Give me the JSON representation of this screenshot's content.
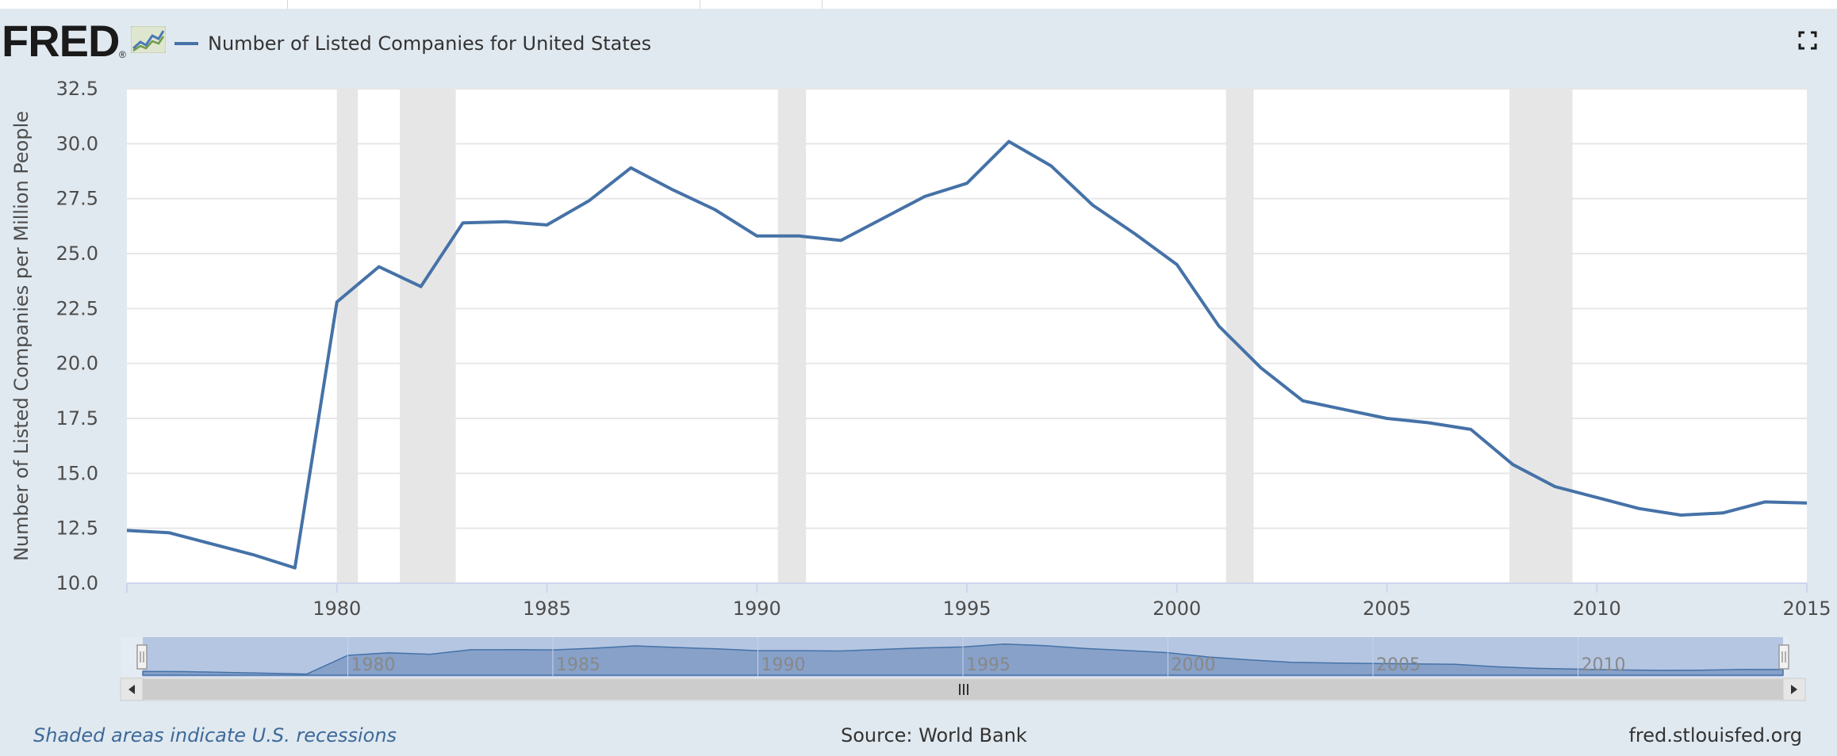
{
  "header": {
    "logo_text": "FRED",
    "logo_reg": "®",
    "fullscreen_icon": "expand-icon"
  },
  "legend": {
    "series_name": "Number of Listed Companies for United States",
    "color": "#4572a7"
  },
  "footer": {
    "recession_note": "Shaded areas indicate U.S. recessions",
    "source": "Source: World Bank",
    "site": "fred.stlouisfed.org"
  },
  "colors": {
    "series": "#4572a7",
    "recession_band": "#e6e6e6",
    "navigator_bg": "#b5c6e2",
    "navigator_fill": "#87a1c9",
    "frame_bg": "#e1e9f0"
  },
  "chart_data": {
    "type": "line",
    "title": "",
    "xlabel": "",
    "ylabel": "Number of Listed Companies per Million People",
    "xlim": [
      1975,
      2015
    ],
    "ylim": [
      10.0,
      32.5
    ],
    "yticks": [
      "10.0",
      "12.5",
      "15.0",
      "17.5",
      "20.0",
      "22.5",
      "25.0",
      "27.5",
      "30.0",
      "32.5"
    ],
    "xticks": [
      "1980",
      "1985",
      "1990",
      "1995",
      "2000",
      "2005",
      "2010",
      "2015"
    ],
    "navigator_ticks": [
      "1980",
      "1985",
      "1990",
      "1995",
      "2000",
      "2005",
      "2010"
    ],
    "grid": true,
    "legend_position": "top-left",
    "recessions": [
      [
        1980.0,
        1980.5
      ],
      [
        1981.5,
        1982.83
      ],
      [
        1990.5,
        1991.17
      ],
      [
        2001.17,
        2001.83
      ],
      [
        2007.92,
        2009.42
      ]
    ],
    "series": [
      {
        "name": "Number of Listed Companies for United States",
        "x": [
          1975,
          1976,
          1977,
          1978,
          1979,
          1980,
          1981,
          1982,
          1983,
          1984,
          1985,
          1986,
          1987,
          1988,
          1989,
          1990,
          1991,
          1992,
          1993,
          1994,
          1995,
          1996,
          1997,
          1998,
          1999,
          2000,
          2001,
          2002,
          2003,
          2004,
          2005,
          2006,
          2007,
          2008,
          2009,
          2010,
          2011,
          2012,
          2013,
          2014,
          2015
        ],
        "values": [
          12.4,
          12.3,
          11.8,
          11.3,
          10.7,
          22.8,
          24.4,
          23.5,
          26.4,
          26.45,
          26.3,
          27.4,
          28.9,
          27.9,
          27.0,
          25.8,
          25.8,
          25.6,
          26.6,
          27.6,
          28.2,
          30.1,
          29.0,
          27.2,
          25.9,
          24.5,
          21.7,
          19.8,
          18.3,
          17.9,
          17.5,
          17.3,
          17.0,
          15.4,
          14.4,
          13.9,
          13.4,
          13.1,
          13.2,
          13.7,
          13.65
        ]
      }
    ]
  }
}
